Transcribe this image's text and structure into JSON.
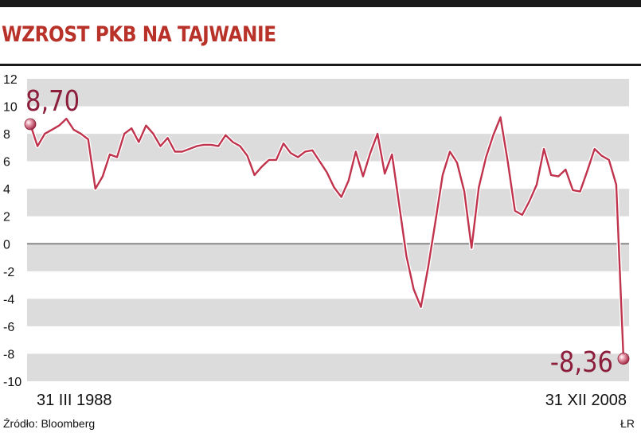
{
  "title": "WZROST PKB NA TAJWANIE",
  "source": "Źródło: Bloomberg",
  "credit": "ŁR",
  "colors": {
    "title": "#b8322a",
    "line": "#c0334d",
    "band": "#dcdcdc",
    "zero": "#888888"
  },
  "chart_data": {
    "type": "line",
    "title": "WZROST PKB NA TAJWANIE",
    "xlabel": "",
    "ylabel": "",
    "ylim": [
      -10,
      12
    ],
    "yticks": [
      "12",
      "10",
      "8",
      "6",
      "4",
      "2",
      "0",
      "-2",
      "-4",
      "-6",
      "-8",
      "-10"
    ],
    "x_labels": {
      "start": "31 III 1988",
      "end": "31 XII 2008"
    },
    "annotations": {
      "first": "8,70",
      "last": "-8,36"
    },
    "series": [
      {
        "values": [
          8.7,
          7.1,
          8.0,
          8.3,
          8.6,
          9.1,
          8.3,
          8.0,
          7.6,
          4.0,
          4.9,
          6.5,
          6.3,
          8.0,
          8.4,
          7.4,
          8.6,
          8.0,
          7.1,
          7.7,
          6.7,
          6.7,
          6.9,
          7.1,
          7.2,
          7.2,
          7.1,
          7.9,
          7.4,
          7.1,
          6.4,
          5.0,
          5.6,
          6.1,
          6.1,
          7.3,
          6.6,
          6.3,
          6.7,
          6.8,
          6.0,
          5.2,
          4.1,
          3.4,
          4.6,
          6.7,
          4.9,
          6.6,
          8.0,
          5.1,
          6.5,
          2.8,
          -0.9,
          -3.3,
          -4.6,
          -1.7,
          1.6,
          5.0,
          6.7,
          5.9,
          3.8,
          -0.3,
          4.1,
          6.3,
          7.9,
          9.2,
          6.0,
          2.4,
          2.1,
          3.1,
          4.3,
          6.9,
          5.0,
          4.9,
          5.4,
          3.9,
          3.8,
          5.3,
          6.9,
          6.4,
          6.1,
          4.3,
          -8.36
        ]
      }
    ]
  }
}
